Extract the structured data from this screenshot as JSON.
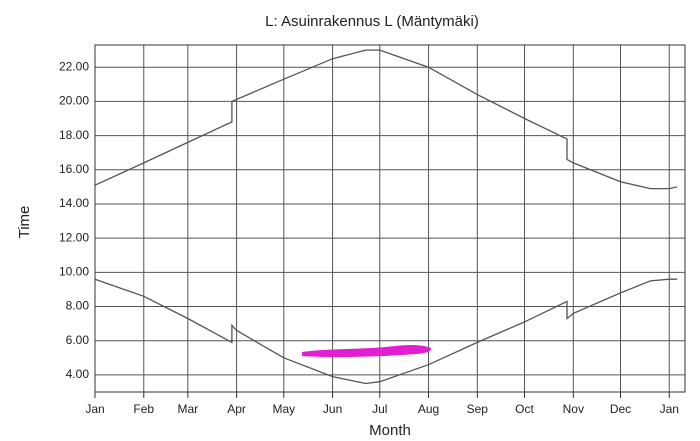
{
  "chart_data": {
    "type": "line",
    "title": "L: Asuinrakennus L (Mäntymäki)",
    "x_label": "Month",
    "y_label": "Time",
    "xlim": [
      0,
      375
    ],
    "ylim": [
      3,
      23.3
    ],
    "grid": true,
    "xticks": [
      {
        "value": 0,
        "label": "Jan"
      },
      {
        "value": 31,
        "label": "Feb"
      },
      {
        "value": 59,
        "label": "Mar"
      },
      {
        "value": 90,
        "label": "Apr"
      },
      {
        "value": 120,
        "label": "May"
      },
      {
        "value": 151,
        "label": "Jun"
      },
      {
        "value": 181,
        "label": "Jul"
      },
      {
        "value": 212,
        "label": "Aug"
      },
      {
        "value": 243,
        "label": "Sep"
      },
      {
        "value": 273,
        "label": "Oct"
      },
      {
        "value": 304,
        "label": "Nov"
      },
      {
        "value": 334,
        "label": "Dec"
      },
      {
        "value": 365,
        "label": "Jan"
      }
    ],
    "yticks": [
      {
        "value": 4,
        "label": "4.00"
      },
      {
        "value": 6,
        "label": "6.00"
      },
      {
        "value": 8,
        "label": "8.00"
      },
      {
        "value": 10,
        "label": "10.00"
      },
      {
        "value": 12,
        "label": "12.00"
      },
      {
        "value": 14,
        "label": "14.00"
      },
      {
        "value": 16,
        "label": "16.00"
      },
      {
        "value": 18,
        "label": "18.00"
      },
      {
        "value": 20,
        "label": "20.00"
      },
      {
        "value": 22,
        "label": "22.00"
      }
    ],
    "series": [
      {
        "color": "#555555",
        "x": [
          0,
          31,
          59,
          87,
          87,
          120,
          151,
          172,
          181,
          212,
          243,
          273,
          300,
          300,
          304,
          334,
          353,
          365,
          370
        ],
        "values": [
          15.1,
          16.4,
          17.6,
          18.8,
          20.0,
          21.3,
          22.5,
          23.0,
          23.0,
          22.0,
          20.4,
          19.0,
          17.8,
          16.6,
          16.4,
          15.3,
          14.9,
          14.9,
          15.0
        ]
      },
      {
        "color": "#555555",
        "x": [
          0,
          31,
          59,
          87,
          87,
          90,
          120,
          151,
          172,
          181,
          212,
          243,
          273,
          300,
          300,
          304,
          334,
          353,
          365,
          370
        ],
        "values": [
          9.6,
          8.6,
          7.3,
          5.9,
          6.9,
          6.6,
          5.0,
          3.9,
          3.5,
          3.6,
          4.6,
          5.9,
          7.1,
          8.3,
          7.3,
          7.6,
          8.8,
          9.5,
          9.6,
          9.6
        ]
      }
    ]
  }
}
